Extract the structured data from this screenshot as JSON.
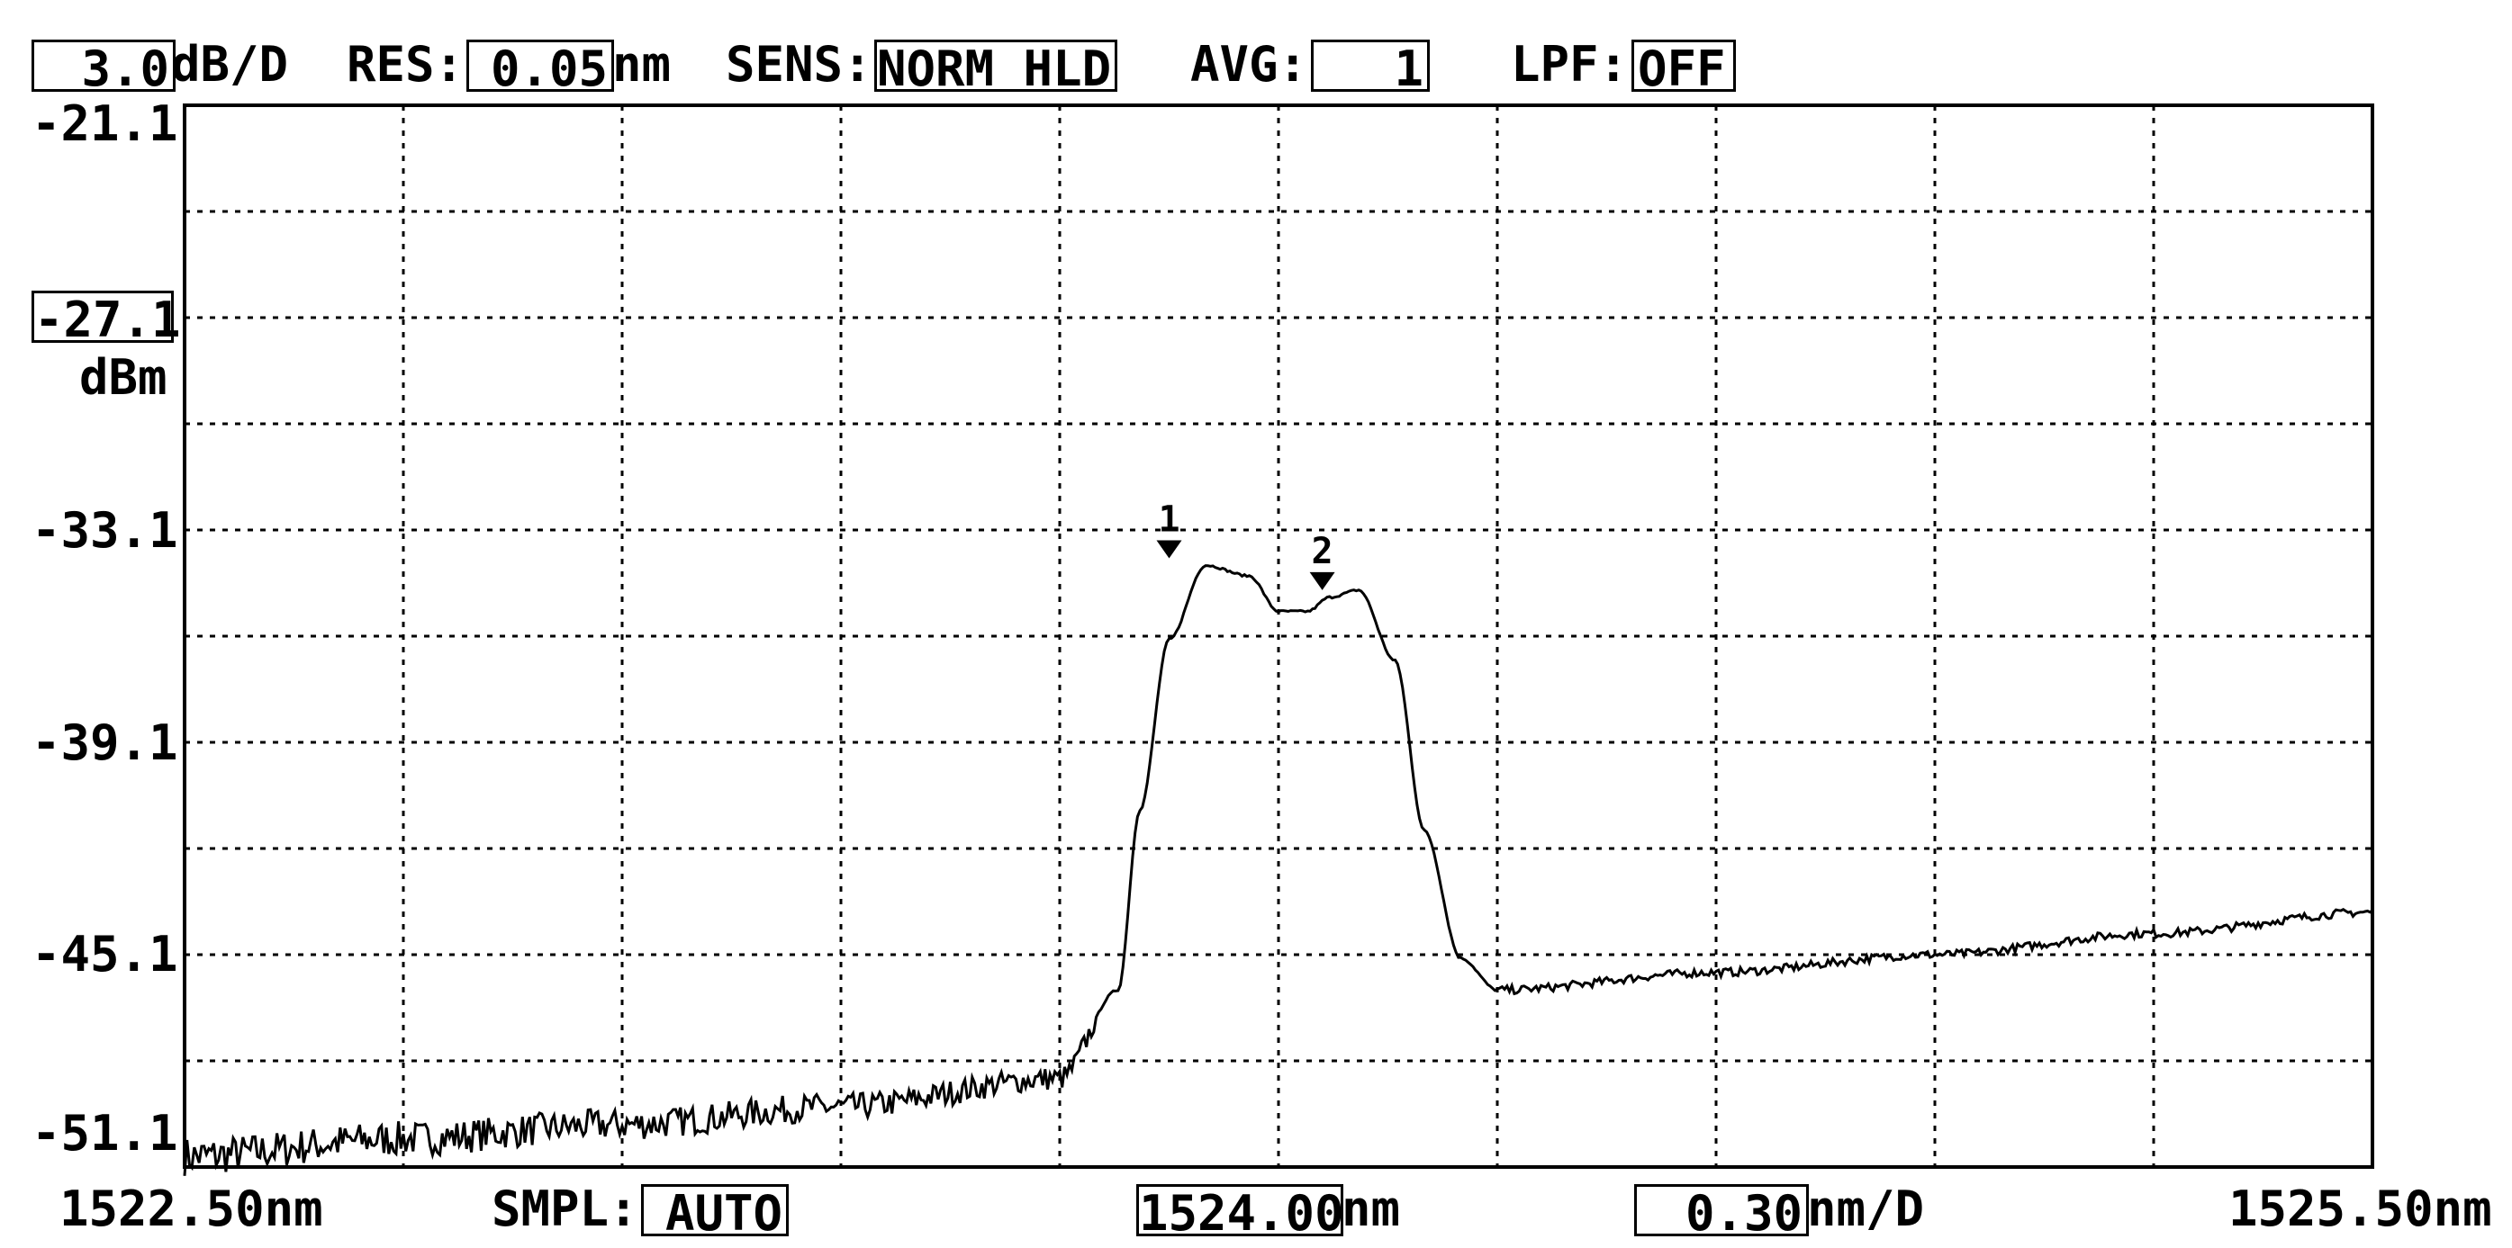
{
  "header": {
    "scale_value": "3.0",
    "scale_unit": "dB/D",
    "res_label": "RES:",
    "res_value": "0.05",
    "res_unit": "nm",
    "sens_label": "SENS:",
    "sens_value": "NORM HLD",
    "avg_label": "AVG:",
    "avg_value": "1",
    "lpf_label": "LPF:",
    "lpf_value": "OFF"
  },
  "y_axis": {
    "top_value": "-21.1",
    "ref_value": "-27.1",
    "unit": "dBm",
    "ticks": [
      "-33.1",
      "-39.1",
      "-45.1",
      "-51.1"
    ]
  },
  "footer": {
    "start": "1522.50nm",
    "smpl_label": "SMPL:",
    "smpl_value": "AUTO",
    "center_value": "1524.00",
    "center_unit": "nm",
    "span_value": "0.30",
    "span_unit": "nm/D",
    "stop": "1525.50nm"
  },
  "colors": {
    "trace": "#000000",
    "grid": "#000000",
    "background": "#ffffff"
  },
  "chart_data": {
    "type": "line",
    "title": "",
    "xlabel": "",
    "ylabel": "dBm",
    "xlim": [
      1522.5,
      1525.5
    ],
    "ylim": [
      -51.1,
      -21.1
    ],
    "x_divisions": 10,
    "y_divisions": 10,
    "grid": true,
    "series": [
      {
        "x": [
          1522.5,
          1522.8,
          1523.1,
          1523.4,
          1523.7,
          1523.78,
          1523.81,
          1523.85,
          1523.9,
          1523.96,
          1524.0,
          1524.04,
          1524.07,
          1524.11,
          1524.16,
          1524.2,
          1524.25,
          1524.3,
          1524.6,
          1524.9,
          1525.2,
          1525.5
        ],
        "y": [
          -50.8,
          -50.3,
          -49.9,
          -49.4,
          -48.6,
          -46.1,
          -41.0,
          -36.2,
          -34.1,
          -34.4,
          -35.4,
          -35.4,
          -35.0,
          -34.8,
          -36.8,
          -41.6,
          -45.2,
          -46.1,
          -45.6,
          -45.1,
          -44.5,
          -43.9
        ]
      }
    ],
    "markers": [
      {
        "label": "1",
        "x": 1523.85,
        "y": -33.9
      },
      {
        "label": "2",
        "x": 1524.06,
        "y": -34.8
      }
    ]
  }
}
